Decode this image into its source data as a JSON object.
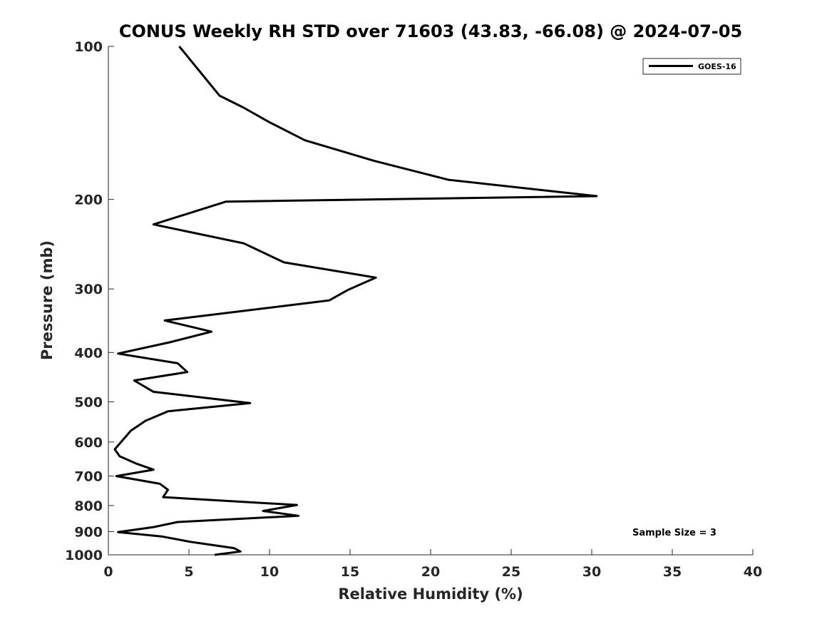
{
  "chart_data": {
    "type": "line",
    "title": "CONUS Weekly RH STD over 71603 (43.83, -66.08) @ 2024-07-05",
    "xlabel": "Relative Humidity (%)",
    "ylabel": "Pressure (mb)",
    "xlim": [
      0,
      40
    ],
    "ylim": [
      100,
      1000
    ],
    "yscale": "log",
    "yreverse": true,
    "xticks": [
      0,
      5,
      10,
      15,
      20,
      25,
      30,
      35,
      40
    ],
    "yticks": [
      100,
      200,
      300,
      400,
      500,
      600,
      700,
      800,
      900,
      1000
    ],
    "grid": false,
    "legend": {
      "position": "top-right",
      "entries": [
        "GOES-16"
      ]
    },
    "annotations": [
      {
        "text": "Sample Size = 3",
        "position": "bottom-right"
      }
    ],
    "series": [
      {
        "name": "GOES-16",
        "color": "#000000",
        "points": [
          [
            4.4,
            100
          ],
          [
            6.9,
            125
          ],
          [
            8.4,
            132
          ],
          [
            10.0,
            141
          ],
          [
            12.2,
            153
          ],
          [
            16.5,
            168
          ],
          [
            21.1,
            183
          ],
          [
            30.3,
            197
          ],
          [
            7.3,
            202
          ],
          [
            2.8,
            224
          ],
          [
            8.4,
            244
          ],
          [
            10.9,
            266
          ],
          [
            16.6,
            285
          ],
          [
            14.9,
            301
          ],
          [
            13.7,
            316
          ],
          [
            3.5,
            346
          ],
          [
            6.4,
            364
          ],
          [
            3.8,
            382
          ],
          [
            0.6,
            402
          ],
          [
            4.3,
            420
          ],
          [
            4.9,
            437
          ],
          [
            1.6,
            454
          ],
          [
            2.8,
            478
          ],
          [
            8.8,
            503
          ],
          [
            3.7,
            522
          ],
          [
            2.3,
            545
          ],
          [
            1.4,
            570
          ],
          [
            0.4,
            620
          ],
          [
            0.7,
            640
          ],
          [
            1.7,
            661
          ],
          [
            2.8,
            680
          ],
          [
            0.5,
            700
          ],
          [
            3.2,
            725
          ],
          [
            3.7,
            745
          ],
          [
            3.4,
            770
          ],
          [
            11.7,
            798
          ],
          [
            9.6,
            820
          ],
          [
            11.8,
            838
          ],
          [
            4.3,
            862
          ],
          [
            2.8,
            882
          ],
          [
            0.6,
            902
          ],
          [
            3.3,
            920
          ],
          [
            5.1,
            943
          ],
          [
            7.8,
            970
          ],
          [
            8.2,
            985
          ],
          [
            6.6,
            1000
          ]
        ]
      }
    ]
  }
}
